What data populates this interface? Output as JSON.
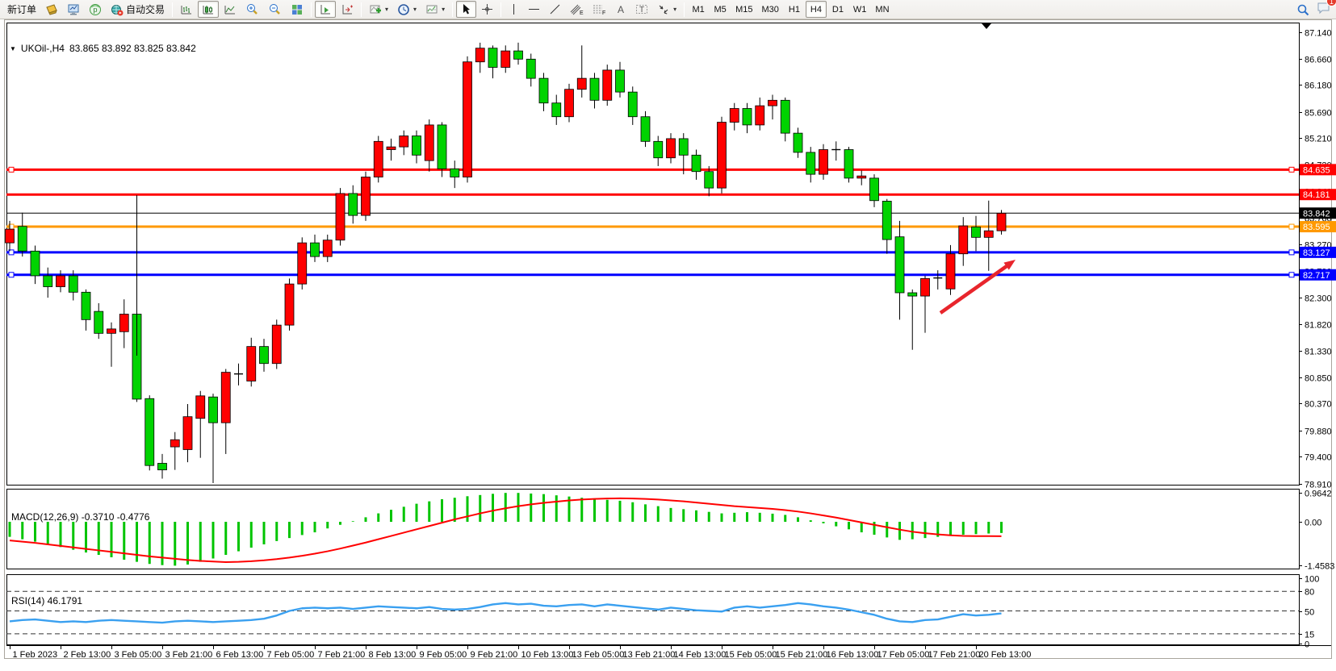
{
  "toolbar": {
    "new_order_label": "新订单",
    "autotrading_label": "自动交易",
    "timeframes": [
      "M1",
      "M5",
      "M15",
      "M30",
      "H1",
      "H4",
      "D1",
      "W1",
      "MN"
    ],
    "active_timeframe": "H4",
    "notification_count": "1"
  },
  "chart": {
    "header": {
      "symbol_period": "UKOil-,H4",
      "ohlc": "83.865 83.892 83.825 83.842"
    },
    "price_axis_ticks": [
      "87.140",
      "86.660",
      "86.180",
      "85.690",
      "85.210",
      "84.730",
      "84.240",
      "83.760",
      "83.270",
      "82.790",
      "82.300",
      "81.820",
      "81.330",
      "80.850",
      "80.370",
      "79.880",
      "79.400",
      "78.910"
    ]
  },
  "macd": {
    "label": "MACD(12,26,9) -0.3710 -0.4776",
    "axis": [
      "0.9642",
      "0.00",
      "-1.4583"
    ]
  },
  "rsi": {
    "label": "RSI(14) 46.1791",
    "axis": [
      "100",
      "80",
      "50",
      "15",
      "0"
    ]
  },
  "chart_data": {
    "type": "candlestick",
    "symbol": "UKOil-",
    "period": "H4",
    "up_color": "#ff0000",
    "down_color": "#00d300",
    "price_range": [
      78.91,
      87.14
    ],
    "current_price": 83.842,
    "time_labels": [
      "1 Feb 2023",
      "2 Feb 13:00",
      "3 Feb 05:00",
      "3 Feb 21:00",
      "6 Feb 13:00",
      "7 Feb 05:00",
      "7 Feb 21:00",
      "8 Feb 13:00",
      "9 Feb 05:00",
      "9 Feb 21:00",
      "10 Feb 13:00",
      "13 Feb 05:00",
      "13 Feb 21:00",
      "14 Feb 13:00",
      "15 Feb 05:00",
      "15 Feb 21:00",
      "16 Feb 13:00",
      "17 Feb 05:00",
      "17 Feb 21:00",
      "20 Feb 13:00"
    ],
    "label_every_n_candles": 4,
    "horizontal_lines": [
      {
        "price": 84.635,
        "label": "84.635",
        "color": "#ff0000",
        "width": 3,
        "handles": true
      },
      {
        "price": 84.181,
        "label": "84.181",
        "color": "#ff0000",
        "width": 3,
        "handles": false
      },
      {
        "price": 83.842,
        "label": "83.842",
        "color": "#000000",
        "width": 1,
        "handles": false
      },
      {
        "price": 83.595,
        "label": "83.595",
        "color": "#ff9900",
        "width": 3,
        "handles": true
      },
      {
        "price": 83.127,
        "label": "83.127",
        "color": "#0000ff",
        "width": 3,
        "handles": true
      },
      {
        "price": 82.717,
        "label": "82.717",
        "color": "#0000ff",
        "width": 3,
        "handles": true
      }
    ],
    "candles": [
      [
        83.3,
        83.7,
        83.15,
        83.55
      ],
      [
        83.6,
        83.85,
        83.05,
        83.15
      ],
      [
        83.15,
        83.25,
        82.55,
        82.7
      ],
      [
        82.7,
        82.85,
        82.3,
        82.5
      ],
      [
        82.5,
        82.8,
        82.4,
        82.7
      ],
      [
        82.7,
        82.8,
        82.25,
        82.4
      ],
      [
        82.4,
        82.45,
        81.7,
        81.9
      ],
      [
        82.05,
        82.2,
        81.55,
        81.65
      ],
      [
        81.65,
        81.85,
        81.04,
        81.73
      ],
      [
        81.68,
        82.27,
        81.38,
        82.0
      ],
      [
        82.0,
        82.1,
        80.4,
        80.45
      ],
      [
        80.46,
        80.52,
        79.15,
        79.24
      ],
      [
        79.28,
        79.45,
        79.0,
        79.16
      ],
      [
        79.58,
        79.85,
        79.16,
        79.71
      ],
      [
        79.53,
        80.36,
        79.3,
        80.13
      ],
      [
        80.1,
        80.6,
        79.38,
        80.51
      ],
      [
        80.49,
        80.55,
        78.92,
        80.02
      ],
      [
        80.02,
        81.0,
        79.45,
        80.94
      ],
      [
        80.9,
        81.1,
        80.7,
        80.91
      ],
      [
        80.78,
        81.57,
        80.68,
        81.41
      ],
      [
        81.41,
        81.55,
        80.95,
        81.1
      ],
      [
        81.1,
        81.9,
        81.0,
        81.8
      ],
      [
        81.8,
        82.65,
        81.7,
        82.55
      ],
      [
        82.55,
        83.4,
        82.45,
        83.3
      ],
      [
        83.3,
        83.45,
        82.95,
        83.05
      ],
      [
        83.05,
        83.45,
        82.95,
        83.35
      ],
      [
        83.35,
        84.3,
        83.25,
        84.2
      ],
      [
        84.2,
        84.35,
        83.65,
        83.8
      ],
      [
        83.8,
        84.6,
        83.7,
        84.5
      ],
      [
        84.5,
        85.25,
        84.4,
        85.15
      ],
      [
        85.0,
        85.2,
        84.8,
        85.05
      ],
      [
        85.05,
        85.35,
        84.9,
        85.25
      ],
      [
        85.25,
        85.35,
        84.75,
        84.9
      ],
      [
        84.8,
        85.55,
        84.6,
        85.45
      ],
      [
        85.45,
        85.5,
        84.5,
        84.65
      ],
      [
        84.65,
        84.8,
        84.3,
        84.5
      ],
      [
        84.5,
        86.7,
        84.4,
        86.6
      ],
      [
        86.6,
        86.95,
        86.4,
        86.85
      ],
      [
        86.85,
        86.9,
        86.3,
        86.5
      ],
      [
        86.5,
        86.9,
        86.4,
        86.8
      ],
      [
        86.8,
        86.95,
        86.55,
        86.65
      ],
      [
        86.65,
        86.75,
        86.15,
        86.3
      ],
      [
        86.3,
        86.4,
        85.7,
        85.85
      ],
      [
        85.85,
        86.0,
        85.45,
        85.6
      ],
      [
        85.6,
        86.2,
        85.5,
        86.1
      ],
      [
        86.1,
        86.9,
        85.95,
        86.3
      ],
      [
        86.3,
        86.4,
        85.75,
        85.9
      ],
      [
        85.9,
        86.55,
        85.8,
        86.45
      ],
      [
        86.45,
        86.6,
        85.95,
        86.05
      ],
      [
        86.05,
        86.15,
        85.45,
        85.6
      ],
      [
        85.6,
        85.7,
        85.05,
        85.15
      ],
      [
        85.15,
        85.25,
        84.7,
        84.85
      ],
      [
        84.85,
        85.3,
        84.75,
        85.2
      ],
      [
        85.2,
        85.3,
        84.55,
        84.9
      ],
      [
        84.9,
        85.0,
        84.45,
        84.6
      ],
      [
        84.6,
        84.7,
        84.15,
        84.3
      ],
      [
        84.3,
        85.6,
        84.2,
        85.5
      ],
      [
        85.5,
        85.85,
        85.35,
        85.75
      ],
      [
        85.75,
        85.85,
        85.3,
        85.45
      ],
      [
        85.45,
        85.95,
        85.35,
        85.8
      ],
      [
        85.8,
        86.0,
        85.55,
        85.9
      ],
      [
        85.9,
        85.95,
        85.15,
        85.3
      ],
      [
        85.3,
        85.4,
        84.85,
        84.95
      ],
      [
        84.95,
        85.05,
        84.4,
        84.55
      ],
      [
        84.55,
        85.1,
        84.45,
        85.0
      ],
      [
        85.0,
        85.15,
        84.8,
        85.0
      ],
      [
        85.0,
        85.05,
        84.4,
        84.48
      ],
      [
        84.48,
        84.62,
        84.35,
        84.52
      ],
      [
        84.48,
        84.55,
        83.95,
        84.07
      ],
      [
        84.06,
        84.1,
        83.1,
        83.36
      ],
      [
        83.41,
        83.7,
        81.9,
        82.39
      ],
      [
        82.39,
        82.45,
        81.35,
        82.33
      ],
      [
        82.33,
        82.7,
        81.66,
        82.65
      ],
      [
        82.66,
        82.8,
        82.45,
        82.66
      ],
      [
        82.46,
        83.26,
        82.35,
        83.1
      ],
      [
        83.1,
        83.77,
        82.88,
        83.61
      ],
      [
        83.59,
        83.79,
        83.15,
        83.4
      ],
      [
        83.4,
        84.07,
        82.79,
        83.52
      ],
      [
        83.52,
        83.9,
        83.45,
        83.84
      ]
    ],
    "indicators": {
      "macd": {
        "name": "MACD(12,26,9)",
        "current_values": [
          "-0.3710",
          "-0.4776"
        ],
        "range": [
          -1.4583,
          0.9642
        ],
        "histogram": [
          -0.5,
          -0.58,
          -0.66,
          -0.75,
          -0.84,
          -0.93,
          -1.02,
          -1.1,
          -1.18,
          -1.26,
          -1.33,
          -1.4,
          -1.44,
          -1.4583,
          -1.42,
          -1.33,
          -1.22,
          -1.1,
          -0.98,
          -0.86,
          -0.75,
          -0.64,
          -0.54,
          -0.44,
          -0.35,
          -0.22,
          -0.1,
          0.02,
          0.15,
          0.28,
          0.4,
          0.5,
          0.6,
          0.68,
          0.75,
          0.8,
          0.85,
          0.89,
          0.93,
          0.96,
          0.96,
          0.94,
          0.92,
          0.88,
          0.84,
          0.8,
          0.76,
          0.73,
          0.7,
          0.65,
          0.58,
          0.52,
          0.46,
          0.42,
          0.38,
          0.33,
          0.28,
          0.3,
          0.32,
          0.3,
          0.27,
          0.23,
          0.15,
          0.05,
          -0.05,
          -0.15,
          -0.25,
          -0.35,
          -0.43,
          -0.52,
          -0.6,
          -0.58,
          -0.54,
          -0.5,
          -0.46,
          -0.43,
          -0.41,
          -0.39,
          -0.371
        ],
        "signal": [
          -0.62,
          -0.66,
          -0.7,
          -0.75,
          -0.8,
          -0.85,
          -0.9,
          -0.95,
          -1.0,
          -1.05,
          -1.1,
          -1.15,
          -1.19,
          -1.23,
          -1.27,
          -1.3,
          -1.32,
          -1.34,
          -1.33,
          -1.31,
          -1.28,
          -1.24,
          -1.19,
          -1.13,
          -1.06,
          -0.98,
          -0.89,
          -0.79,
          -0.69,
          -0.58,
          -0.47,
          -0.36,
          -0.25,
          -0.14,
          -0.03,
          0.08,
          0.18,
          0.28,
          0.37,
          0.45,
          0.52,
          0.58,
          0.63,
          0.67,
          0.71,
          0.74,
          0.76,
          0.775,
          0.78,
          0.775,
          0.76,
          0.74,
          0.71,
          0.68,
          0.64,
          0.6,
          0.56,
          0.52,
          0.49,
          0.46,
          0.43,
          0.39,
          0.34,
          0.28,
          0.21,
          0.14,
          0.06,
          -0.02,
          -0.1,
          -0.18,
          -0.26,
          -0.33,
          -0.38,
          -0.42,
          -0.45,
          -0.47,
          -0.475,
          -0.477,
          -0.4776
        ]
      },
      "rsi": {
        "name": "RSI(14)",
        "current_value": "46.1791",
        "range": [
          0,
          100
        ],
        "levels": [
          80,
          50,
          15
        ],
        "values": [
          34,
          36,
          37,
          35,
          33,
          34,
          33,
          35,
          36,
          35,
          34,
          33,
          32,
          34,
          35,
          34,
          33,
          34,
          35,
          36,
          38,
          43,
          50,
          54,
          55,
          54,
          55,
          53,
          55,
          57,
          56,
          55,
          54,
          56,
          53,
          52,
          53,
          56,
          60,
          62,
          60,
          61,
          58,
          57,
          59,
          60,
          57,
          60,
          58,
          56,
          54,
          52,
          55,
          53,
          51,
          50,
          49,
          55,
          57,
          55,
          57,
          59,
          62,
          60,
          57,
          55,
          52,
          48,
          44,
          38,
          34,
          33,
          36,
          37,
          41,
          45,
          43,
          44,
          46.18
        ]
      }
    },
    "annotations": [
      {
        "type": "arrow",
        "direction": "up-right",
        "color": "#e8252c"
      },
      {
        "type": "vertical-line",
        "color": "#000000"
      }
    ]
  }
}
